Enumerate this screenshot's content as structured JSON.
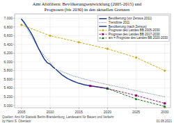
{
  "chart_data": {
    "type": "line",
    "title": "Amt Altdöbern: Bevölkerungsentwicklung (2005-2015) und",
    "subtitle": "Prognosen (bis 2030) in den aktuellen Grenzen",
    "xlim": [
      2003.8,
      2031.0
    ],
    "ylim": [
      4950,
      7100
    ],
    "xticks": [
      2005,
      2010,
      2015,
      2020,
      2025,
      2030
    ],
    "yticks": [
      {
        "value": 5000,
        "label": "5.000"
      },
      {
        "value": 5200,
        "label": "5.200"
      },
      {
        "value": 5400,
        "label": "5.400"
      },
      {
        "value": 5600,
        "label": "5.600"
      },
      {
        "value": 5800,
        "label": "5.800"
      },
      {
        "value": 6000,
        "label": "6.000"
      },
      {
        "value": 6200,
        "label": "6.200"
      },
      {
        "value": 6400,
        "label": "6.400"
      },
      {
        "value": 6600,
        "label": "6.600"
      },
      {
        "value": 6800,
        "label": "6.800"
      },
      {
        "value": 7000,
        "label": "7.000"
      }
    ],
    "grid": true,
    "legend": "upper right",
    "series": [
      {
        "name": "Bevölkerung (vor Zensus 2011)",
        "color": "#1a3a8a",
        "line_style": "solid",
        "x": [
          2005,
          2005.5,
          2006,
          2006.5,
          2007,
          2007.5,
          2008,
          2008.5,
          2009,
          2009.5,
          2010,
          2010.5,
          2011
        ],
        "values": [
          6980,
          6900,
          6800,
          6700,
          6580,
          6440,
          6300,
          6180,
          6060,
          5980,
          5950,
          5880,
          5830
        ]
      },
      {
        "name": "Trendlinie 2011",
        "color": "#1a3a8a",
        "line_style": "dotted",
        "x": [
          2005,
          2008,
          2011,
          2014,
          2017,
          2020,
          2025,
          2030
        ],
        "values": [
          6980,
          6300,
          5830,
          5680,
          5570,
          5480,
          5340,
          5200
        ]
      },
      {
        "name": "Bevölkerung (nach Zensus)",
        "color": "#1a3a8a",
        "line_style": "solid",
        "x": [
          2011,
          2012,
          2013,
          2014,
          2015,
          2016,
          2017,
          2018,
          2019,
          2020
        ],
        "values": [
          5830,
          5710,
          5620,
          5560,
          5510,
          5475,
          5450,
          5430,
          5410,
          5390
        ]
      },
      {
        "name": "Prognose des Landes BB 2005-2030",
        "color": "#c8a000",
        "line_style": "dashed",
        "marker": "diamond",
        "x": [
          2005,
          2010,
          2015,
          2020,
          2025,
          2030
        ],
        "values": [
          6850,
          6600,
          6450,
          6300,
          6100,
          5800
        ]
      },
      {
        "name": "Prognose des Landes BB 2017-2030",
        "color": "#8b006a",
        "line_style": "dashed",
        "marker": "square",
        "x": [
          2017,
          2020,
          2025,
          2030
        ],
        "values": [
          5450,
          5390,
          5230,
          5050
        ]
      },
      {
        "name": "am = Prognose des Landes BB 2020-2030",
        "color": "#006400",
        "line_style": "dashed",
        "marker": "triangle",
        "x": [
          2020,
          2025,
          2030
        ],
        "values": [
          5390,
          5150,
          4980
        ]
      }
    ],
    "annotations": [
      "by Hans S. Oberlack",
      "Quellen: Amt für Statistik Berlin-Brandenburg, Landesamt für Bauen und Verkehr",
      "01.08.2021"
    ]
  }
}
